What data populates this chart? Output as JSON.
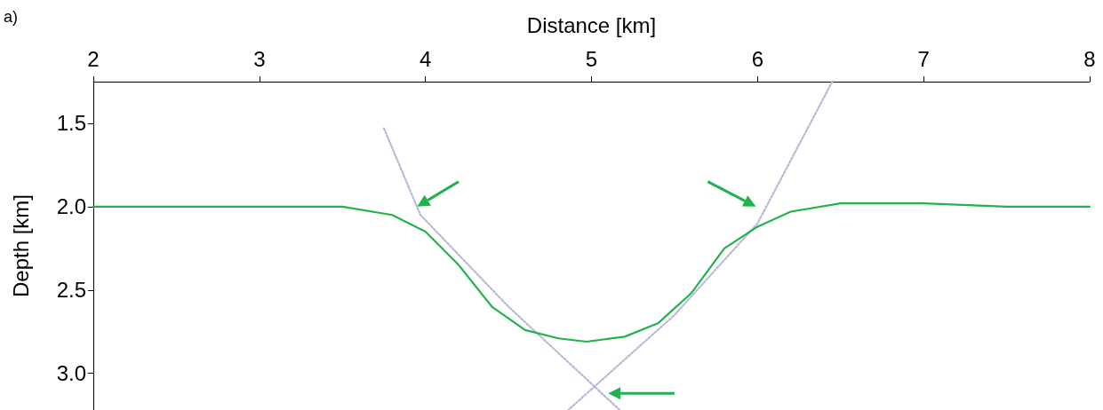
{
  "chart_data": {
    "type": "line",
    "xlabel": "Distance [km]",
    "ylabel": "Depth [km]",
    "annotations": [
      "a)"
    ],
    "xlim": [
      2,
      8
    ],
    "xticks": [
      2,
      3,
      4,
      5,
      6,
      7,
      8
    ],
    "ylim": [
      3.22,
      1.25
    ],
    "yticks": [
      1.5,
      {
        "value": 2,
        "label": "2.0"
      },
      2.5,
      {
        "value": 3,
        "label": "3.0"
      }
    ],
    "marker": "none",
    "series": [
      {
        "color": "#b8b8d8",
        "line_style": "dotted",
        "x": [
          3.75,
          3.97,
          4.5,
          5.17
        ],
        "values": [
          1.53,
          2.05,
          2.6,
          3.22
        ]
      },
      {
        "color": "#b8b8d8",
        "line_style": "dotted",
        "x": [
          6.45,
          6.0,
          5.5,
          4.86
        ],
        "values": [
          1.25,
          2.1,
          2.65,
          3.22
        ]
      },
      {
        "color": "#22b24c",
        "line_style": "solid",
        "x": [
          2.0,
          2.5,
          3.0,
          3.5,
          3.8,
          4.0,
          4.2,
          4.4,
          4.6,
          4.8,
          4.97,
          5.2,
          5.4,
          5.6,
          5.8,
          6.0,
          6.2,
          6.5,
          7.0,
          7.5,
          8.0
        ],
        "values": [
          2.0,
          2.0,
          2.0,
          2.0,
          2.05,
          2.15,
          2.35,
          2.6,
          2.74,
          2.79,
          2.81,
          2.78,
          2.7,
          2.52,
          2.25,
          2.12,
          2.03,
          1.98,
          1.98,
          2.0,
          2.0
        ]
      }
    ]
  }
}
